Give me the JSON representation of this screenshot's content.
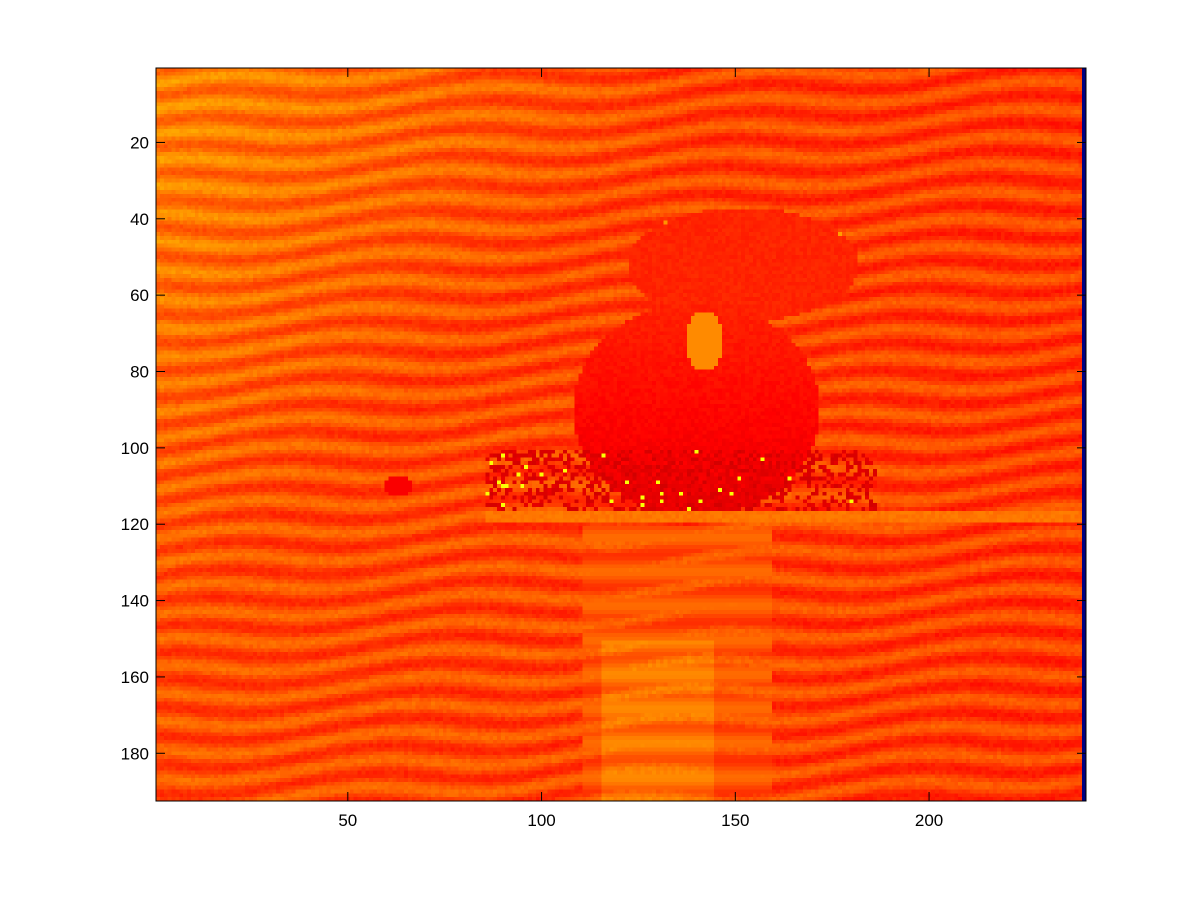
{
  "chart_data": {
    "type": "heatmap",
    "title": "",
    "xlabel": "",
    "ylabel": "",
    "colormap": "jet",
    "image_width": 240,
    "image_height": 192,
    "xlim": [
      0.5,
      240.5
    ],
    "ylim": [
      0.5,
      192.5
    ],
    "y_reversed": true,
    "x_ticks": [
      50,
      100,
      150,
      200
    ],
    "y_ticks": [
      20,
      40,
      60,
      80,
      100,
      120,
      140,
      160,
      180
    ],
    "x_tick_labels": [
      "50",
      "100",
      "150",
      "200"
    ],
    "y_tick_labels": [
      "20",
      "40",
      "60",
      "80",
      "100",
      "120",
      "140",
      "160",
      "180"
    ],
    "dominant_colors": [
      "#d80000",
      "#ff3000",
      "#ff7a00",
      "#ffb000",
      "#ffe000",
      "#7fff7f",
      "#000080"
    ],
    "subject": {
      "head_top": 38,
      "head_x_range": [
        125,
        183
      ],
      "body_x_range": [
        95,
        175
      ],
      "waterline": 118,
      "reflection_bottom": 192
    },
    "grid": false,
    "legend": "none"
  }
}
